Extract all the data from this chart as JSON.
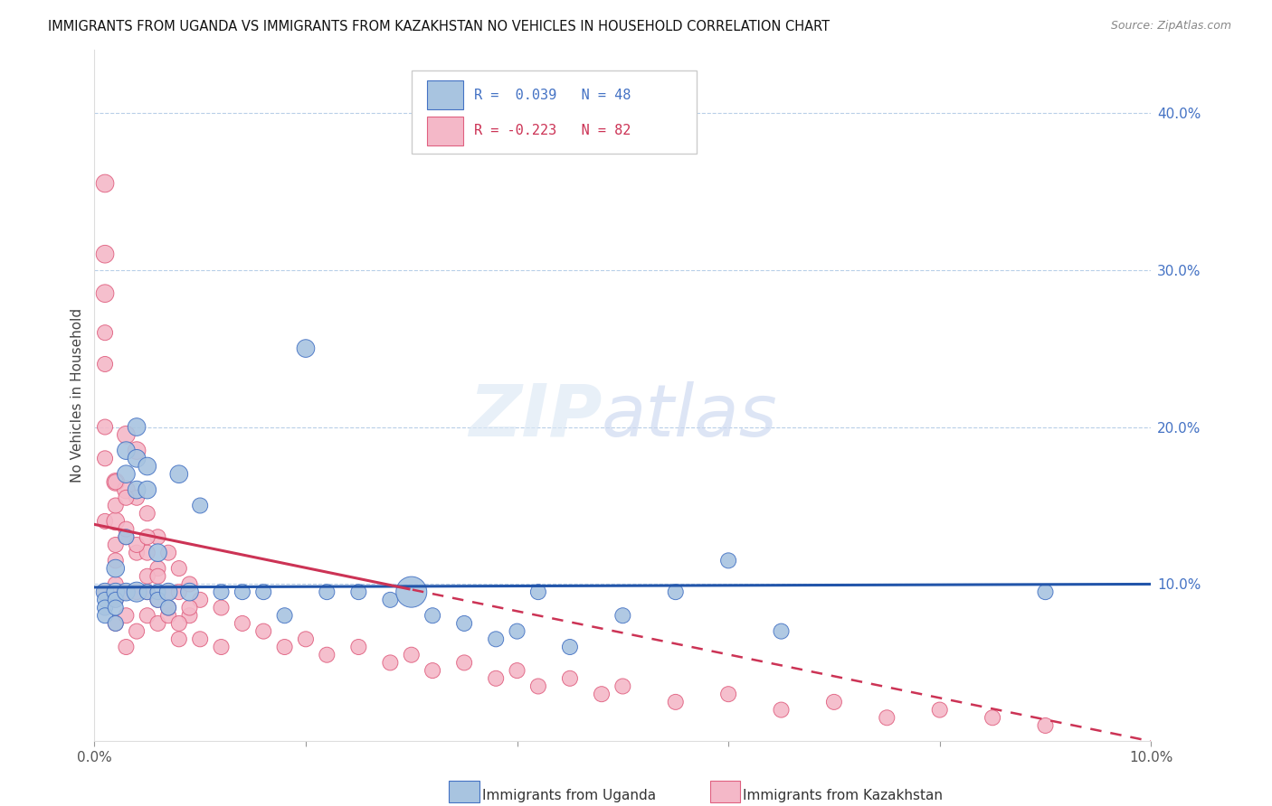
{
  "title": "IMMIGRANTS FROM UGANDA VS IMMIGRANTS FROM KAZAKHSTAN NO VEHICLES IN HOUSEHOLD CORRELATION CHART",
  "source": "Source: ZipAtlas.com",
  "ylabel_left": "No Vehicles in Household",
  "legend_label_blue": "Immigrants from Uganda",
  "legend_label_pink": "Immigrants from Kazakhstan",
  "r_blue": 0.039,
  "n_blue": 48,
  "r_pink": -0.223,
  "n_pink": 82,
  "xlim": [
    0.0,
    0.1
  ],
  "ylim": [
    0.0,
    0.44
  ],
  "color_blue": "#a8c4e0",
  "color_blue_dark": "#4472c4",
  "color_pink": "#f4b8c8",
  "color_pink_dark": "#e06080",
  "color_trendline_blue": "#2255aa",
  "color_trendline_pink": "#cc3355",
  "uganda_x": [
    0.001,
    0.001,
    0.001,
    0.001,
    0.002,
    0.002,
    0.002,
    0.002,
    0.002,
    0.003,
    0.003,
    0.003,
    0.003,
    0.004,
    0.004,
    0.004,
    0.004,
    0.005,
    0.005,
    0.005,
    0.006,
    0.006,
    0.006,
    0.007,
    0.007,
    0.008,
    0.009,
    0.01,
    0.012,
    0.014,
    0.016,
    0.018,
    0.02,
    0.022,
    0.025,
    0.028,
    0.03,
    0.032,
    0.035,
    0.038,
    0.04,
    0.042,
    0.045,
    0.05,
    0.055,
    0.06,
    0.065,
    0.09
  ],
  "uganda_y": [
    0.095,
    0.09,
    0.085,
    0.08,
    0.11,
    0.095,
    0.09,
    0.085,
    0.075,
    0.185,
    0.17,
    0.13,
    0.095,
    0.2,
    0.18,
    0.16,
    0.095,
    0.175,
    0.16,
    0.095,
    0.12,
    0.095,
    0.09,
    0.095,
    0.085,
    0.17,
    0.095,
    0.15,
    0.095,
    0.095,
    0.095,
    0.08,
    0.25,
    0.095,
    0.095,
    0.09,
    0.095,
    0.08,
    0.075,
    0.065,
    0.07,
    0.095,
    0.06,
    0.08,
    0.095,
    0.115,
    0.07,
    0.095
  ],
  "uganda_size": [
    200,
    150,
    150,
    150,
    200,
    200,
    150,
    150,
    150,
    200,
    200,
    150,
    200,
    200,
    200,
    200,
    250,
    200,
    200,
    150,
    200,
    150,
    150,
    200,
    150,
    200,
    200,
    150,
    150,
    150,
    150,
    150,
    200,
    150,
    150,
    150,
    600,
    150,
    150,
    150,
    150,
    150,
    150,
    150,
    150,
    150,
    150,
    150
  ],
  "kazakhstan_x": [
    0.001,
    0.001,
    0.001,
    0.001,
    0.001,
    0.001,
    0.002,
    0.002,
    0.002,
    0.002,
    0.002,
    0.002,
    0.002,
    0.003,
    0.003,
    0.003,
    0.003,
    0.003,
    0.003,
    0.004,
    0.004,
    0.004,
    0.004,
    0.004,
    0.005,
    0.005,
    0.005,
    0.005,
    0.006,
    0.006,
    0.006,
    0.006,
    0.007,
    0.007,
    0.007,
    0.008,
    0.008,
    0.008,
    0.009,
    0.009,
    0.01,
    0.01,
    0.012,
    0.012,
    0.014,
    0.016,
    0.018,
    0.02,
    0.022,
    0.025,
    0.028,
    0.03,
    0.032,
    0.035,
    0.038,
    0.04,
    0.042,
    0.045,
    0.048,
    0.05,
    0.055,
    0.06,
    0.065,
    0.07,
    0.075,
    0.08,
    0.085,
    0.09,
    0.001,
    0.001,
    0.001,
    0.002,
    0.002,
    0.003,
    0.003,
    0.004,
    0.005,
    0.005,
    0.006,
    0.007,
    0.008,
    0.009
  ],
  "kazakhstan_y": [
    0.355,
    0.31,
    0.285,
    0.18,
    0.14,
    0.095,
    0.165,
    0.14,
    0.125,
    0.115,
    0.1,
    0.09,
    0.075,
    0.195,
    0.16,
    0.13,
    0.095,
    0.08,
    0.06,
    0.185,
    0.155,
    0.12,
    0.095,
    0.07,
    0.145,
    0.12,
    0.095,
    0.08,
    0.13,
    0.11,
    0.09,
    0.075,
    0.12,
    0.095,
    0.08,
    0.11,
    0.095,
    0.065,
    0.1,
    0.08,
    0.09,
    0.065,
    0.085,
    0.06,
    0.075,
    0.07,
    0.06,
    0.065,
    0.055,
    0.06,
    0.05,
    0.055,
    0.045,
    0.05,
    0.04,
    0.045,
    0.035,
    0.04,
    0.03,
    0.035,
    0.025,
    0.03,
    0.02,
    0.025,
    0.015,
    0.02,
    0.015,
    0.01,
    0.26,
    0.24,
    0.2,
    0.165,
    0.15,
    0.155,
    0.135,
    0.125,
    0.13,
    0.105,
    0.105,
    0.085,
    0.075,
    0.085
  ],
  "kazakhstan_size": [
    200,
    200,
    200,
    150,
    150,
    150,
    200,
    200,
    150,
    150,
    150,
    150,
    150,
    200,
    200,
    150,
    150,
    150,
    150,
    200,
    150,
    150,
    150,
    150,
    150,
    150,
    150,
    150,
    150,
    150,
    150,
    150,
    150,
    150,
    150,
    150,
    150,
    150,
    150,
    150,
    150,
    150,
    150,
    150,
    150,
    150,
    150,
    150,
    150,
    150,
    150,
    150,
    150,
    150,
    150,
    150,
    150,
    150,
    150,
    150,
    150,
    150,
    150,
    150,
    150,
    150,
    150,
    150,
    150,
    150,
    150,
    150,
    150,
    150,
    150,
    150,
    150,
    150,
    150,
    150,
    150,
    150
  ]
}
